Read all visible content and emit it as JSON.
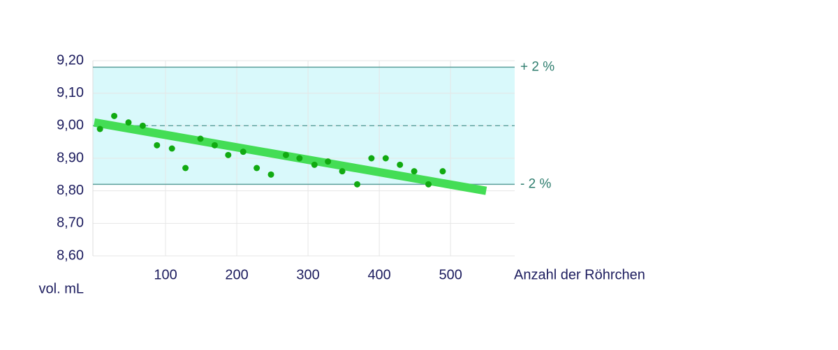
{
  "chart_data": {
    "type": "scatter",
    "x_label": "Anzahl der Röhrchen",
    "y_label": "vol. mL",
    "x": [
      8,
      28,
      48,
      68,
      88,
      109,
      128,
      149,
      169,
      188,
      209,
      228,
      248,
      269,
      288,
      309,
      328,
      348,
      369,
      389,
      409,
      429,
      449,
      469,
      489
    ],
    "values": [
      8.99,
      9.03,
      9.01,
      9.0,
      8.94,
      8.93,
      8.87,
      8.96,
      8.94,
      8.91,
      8.92,
      8.87,
      8.85,
      8.91,
      8.9,
      8.88,
      8.89,
      8.86,
      8.82,
      8.9,
      8.9,
      8.88,
      8.86,
      8.82,
      8.86
    ],
    "color": "#11aa11",
    "trend": {
      "x": [
        0,
        550
      ],
      "values": [
        9.01,
        8.8
      ],
      "color": "#44dd55"
    },
    "band": {
      "upper": 9.18,
      "lower": 8.82,
      "center": 9.0,
      "upper_label": "+ 2 %",
      "lower_label": "- 2 %",
      "fill": "#d9f9fb",
      "line_color": "#5a9e9a"
    },
    "xlim": [
      0,
      590
    ],
    "ylim": [
      8.6,
      9.2
    ],
    "xticks": [
      100,
      200,
      300,
      400,
      500
    ],
    "yticks": [
      {
        "value": 8.6,
        "label": "8,60"
      },
      {
        "value": 8.7,
        "label": "8,70"
      },
      {
        "value": 8.8,
        "label": "8,80"
      },
      {
        "value": 8.9,
        "label": "8,90"
      },
      {
        "value": 9.0,
        "label": "9,00"
      },
      {
        "value": 9.1,
        "label": "9,10"
      },
      {
        "value": 9.2,
        "label": "9,20"
      }
    ],
    "grid": true
  }
}
